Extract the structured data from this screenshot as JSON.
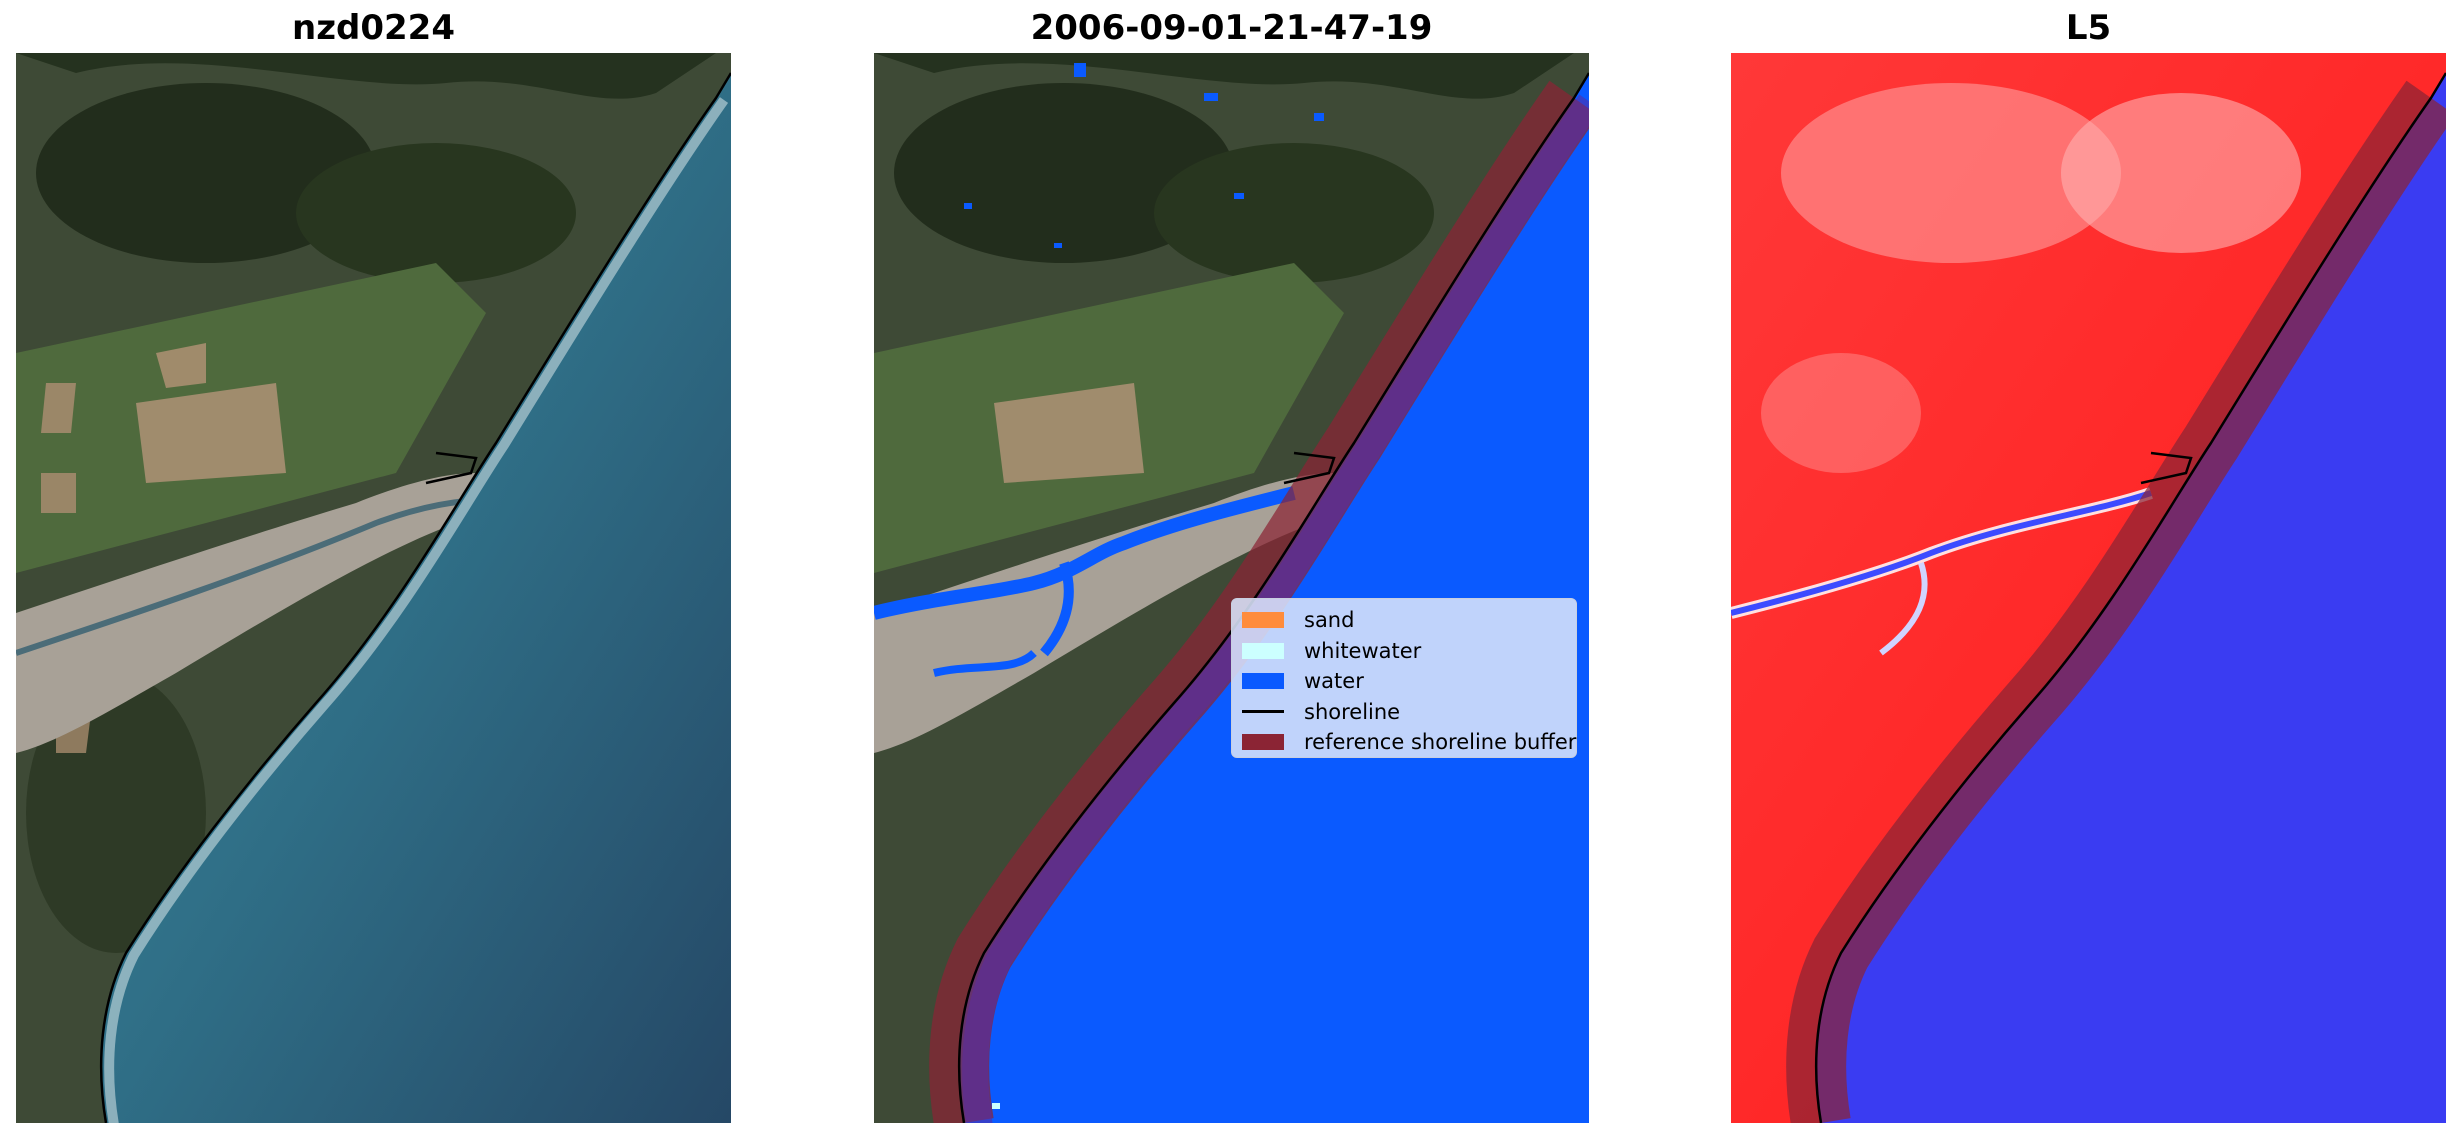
{
  "panels": [
    {
      "title": "nzd0224"
    },
    {
      "title": "2006-09-01-21-47-19"
    },
    {
      "title": "L5"
    }
  ],
  "legend": {
    "items": [
      {
        "label": "sand",
        "kind": "patch",
        "color": "#ff8c3b"
      },
      {
        "label": "whitewater",
        "kind": "patch",
        "color": "#ccffff"
      },
      {
        "label": "water",
        "kind": "patch",
        "color": "#0a5aff"
      },
      {
        "label": "shoreline",
        "kind": "line",
        "color": "#000000"
      },
      {
        "label": "reference shoreline buffer",
        "kind": "patch",
        "color": "#8b2434"
      }
    ]
  }
}
